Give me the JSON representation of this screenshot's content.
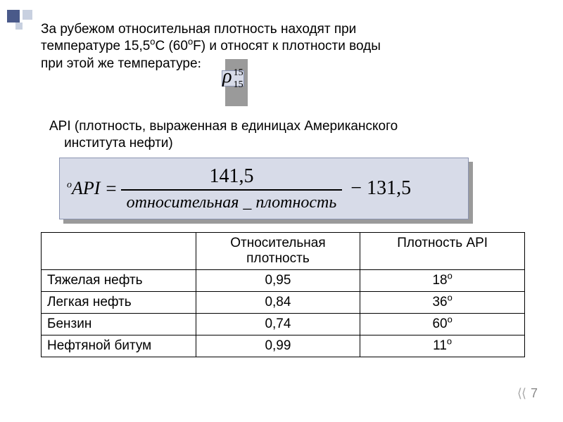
{
  "para1_a": "За рубежом относительная плотность находят при",
  "para1_b": "температуре  15,5",
  "para1_c": "С (60",
  "para1_d": "F) и относят к плотности воды",
  "para1_e": "при этой же температуре",
  "rho_top": "15",
  "rho_bot": "15",
  "para2_a": "API (плотность, выраженная в единицах Американского",
  "para2_b": "института нефти)",
  "formula": {
    "lhs_sup": "o",
    "lhs": "API",
    "eq": " = ",
    "numerator": "141,5",
    "denominator": "относительная _ плотность",
    "tail": " − 131,5"
  },
  "table": {
    "headers": [
      "",
      "Относительная плотность",
      "Плотность API"
    ],
    "rows": [
      [
        "Тяжелая нефть",
        "0,95",
        "18",
        "o"
      ],
      [
        "Легкая нефть",
        "0,84",
        "36",
        "o"
      ],
      [
        "Бензин",
        "0,74",
        "60",
        "o"
      ],
      [
        "Нефтяной битум",
        "0,99",
        "11",
        "o"
      ]
    ]
  },
  "pagenum": "7",
  "sup_o": "о",
  "colon": ":",
  "colors": {
    "box_bg": "#d7dbe8",
    "box_border": "#8a93b0",
    "shadow": "#9a9a9a",
    "deco_dark": "#4a5a8a",
    "deco_light": "#c8d0e0"
  }
}
